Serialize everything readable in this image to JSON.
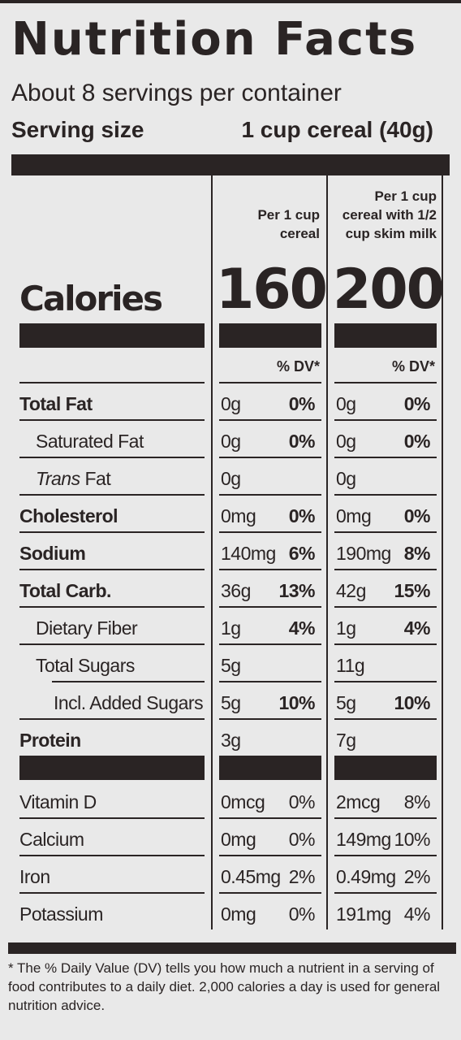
{
  "label": {
    "title": "Nutrition Facts",
    "servings_per_container": "About 8 servings per container",
    "serving_size_label": "Serving size",
    "serving_size_value": "1 cup cereal (40g)",
    "col1_header": "Per 1 cup cereal",
    "col2_header": "Per 1 cup cereal with 1/2 cup skim milk",
    "calories_label": "Calories",
    "calories_col1": "160",
    "calories_col2": "200",
    "dv_header": "% DV*",
    "footnote": "* The % Daily Value (DV) tells you how much a nutrient in a serving of food contributes to a daily diet. 2,000 calories a day is used for general nutrition advice."
  },
  "nutrients": [
    {
      "name": "Total Fat",
      "amount1": "0g",
      "dv1": "0%",
      "amount2": "0g",
      "dv2": "0%"
    },
    {
      "name": "Saturated Fat",
      "amount1": "0g",
      "dv1": "0%",
      "amount2": "0g",
      "dv2": "0%"
    },
    {
      "name_italic": "Trans",
      "name_rest": " Fat",
      "amount1": "0g",
      "dv1": "",
      "amount2": "0g",
      "dv2": ""
    },
    {
      "name": "Cholesterol",
      "amount1": "0mg",
      "dv1": "0%",
      "amount2": "0mg",
      "dv2": "0%"
    },
    {
      "name": "Sodium",
      "amount1": "140mg",
      "dv1": "6%",
      "amount2": "190mg",
      "dv2": "8%"
    },
    {
      "name": "Total Carb.",
      "amount1": "36g",
      "dv1": "13%",
      "amount2": "42g",
      "dv2": "15%"
    },
    {
      "name": "Dietary Fiber",
      "amount1": "1g",
      "dv1": "4%",
      "amount2": "1g",
      "dv2": "4%"
    },
    {
      "name": "Total Sugars",
      "amount1": "5g",
      "dv1": "",
      "amount2": "11g",
      "dv2": ""
    },
    {
      "name": "Incl. Added Sugars",
      "amount1": "5g",
      "dv1": "10%",
      "amount2": "5g",
      "dv2": "10%"
    },
    {
      "name": "Protein",
      "amount1": "3g",
      "dv1": "",
      "amount2": "7g",
      "dv2": ""
    },
    {
      "name": "Vitamin D",
      "amount1": "0mcg",
      "dv1": "0%",
      "amount2": "2mcg",
      "dv2": "8%"
    },
    {
      "name": "Calcium",
      "amount1": "0mg",
      "dv1": "0%",
      "amount2": "149mg",
      "dv2": "10%"
    },
    {
      "name": "Iron",
      "amount1": "0.45mg",
      "dv1": "2%",
      "amount2": "0.49mg",
      "dv2": "2%"
    },
    {
      "name": "Potassium",
      "amount1": "0mg",
      "dv1": "0%",
      "amount2": "191mg",
      "dv2": "4%"
    }
  ]
}
